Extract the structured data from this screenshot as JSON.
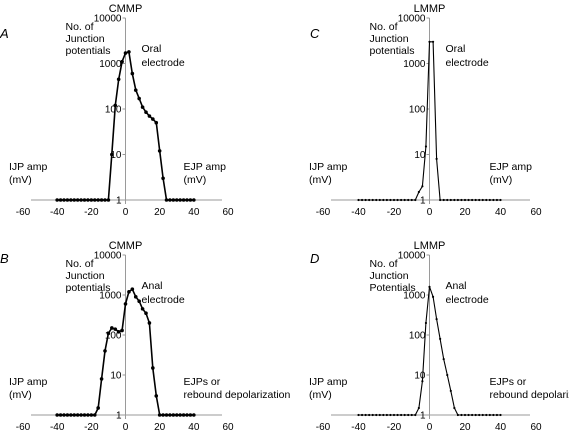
{
  "chart_data": [
    {
      "type": "line",
      "panel_label": "A",
      "title": "CMMP",
      "ylabel": "No. of Junction potentials",
      "ylabel_lines": [
        "No. of",
        "Junction",
        "potentials"
      ],
      "electrode_lines": [
        "Oral",
        "electrode"
      ],
      "left_note_lines": [
        "IJP amp",
        "(mV)"
      ],
      "right_note_lines": [
        "EJP amp",
        "(mV)"
      ],
      "y_scale": "log",
      "ylim": [
        1,
        10000
      ],
      "xlim": [
        -60,
        60
      ],
      "yticks": [
        "1",
        "10",
        "100",
        "1000",
        "10000"
      ],
      "xticks": [
        "-60",
        "-40",
        "-20",
        "0",
        "20",
        "40",
        "60"
      ],
      "series": [
        {
          "x": [
            -40,
            -38,
            -36,
            -34,
            -32,
            -30,
            -28,
            -26,
            -24,
            -22,
            -20,
            -18,
            -16,
            -14,
            -12,
            -10,
            -8,
            -6,
            -4,
            -2,
            0,
            2,
            4,
            6,
            8,
            10,
            12,
            14,
            16,
            18,
            20,
            22,
            24,
            26,
            28,
            30,
            32,
            34,
            36,
            38,
            40
          ],
          "y": [
            1,
            1,
            1,
            1,
            1,
            1,
            1,
            1,
            1,
            1,
            1,
            1,
            1,
            1,
            1,
            1,
            10,
            120,
            450,
            1100,
            1700,
            1800,
            600,
            260,
            170,
            110,
            85,
            70,
            60,
            50,
            12,
            3,
            1,
            1,
            1,
            1,
            1,
            1,
            1,
            1,
            1
          ]
        }
      ]
    },
    {
      "type": "line",
      "panel_label": "C",
      "title": "LMMP",
      "ylabel": "No. of Junction potentials",
      "ylabel_lines": [
        "No. of",
        "Junction",
        "potentials"
      ],
      "electrode_lines": [
        "Oral",
        "electrode"
      ],
      "left_note_lines": [
        "IJP amp",
        "(mV)"
      ],
      "right_note_lines": [
        "EJP amp",
        "(mV)"
      ],
      "y_scale": "log",
      "ylim": [
        1,
        10000
      ],
      "xlim": [
        -60,
        60
      ],
      "yticks": [
        "1",
        "10",
        "100",
        "1000",
        "10000"
      ],
      "xticks": [
        "-60",
        "-40",
        "-20",
        "0",
        "20",
        "40",
        "60"
      ],
      "series": [
        {
          "x": [
            -40,
            -38,
            -36,
            -34,
            -32,
            -30,
            -28,
            -26,
            -24,
            -22,
            -20,
            -18,
            -16,
            -14,
            -12,
            -10,
            -8,
            -6,
            -4,
            -2,
            0,
            2,
            4,
            6,
            8,
            10,
            12,
            14,
            16,
            18,
            20,
            22,
            24,
            26,
            28,
            30,
            32,
            34,
            36,
            38,
            40
          ],
          "y": [
            1,
            1,
            1,
            1,
            1,
            1,
            1,
            1,
            1,
            1,
            1,
            1,
            1,
            1,
            1,
            1,
            1,
            1.5,
            2,
            15,
            3000,
            3000,
            8,
            1,
            1,
            1,
            1,
            1,
            1,
            1,
            1,
            1,
            1,
            1,
            1,
            1,
            1,
            1,
            1,
            1,
            1
          ]
        }
      ]
    },
    {
      "type": "line",
      "panel_label": "B",
      "title": "CMMP",
      "ylabel": "No. of Junction potentials",
      "ylabel_lines": [
        "No. of",
        "Junction",
        "potentials"
      ],
      "electrode_lines": [
        "Anal",
        "electrode"
      ],
      "left_note_lines": [
        "IJP amp",
        "(mV)"
      ],
      "right_note_lines": [
        "EJPs or",
        "rebound depolarization"
      ],
      "y_scale": "log",
      "ylim": [
        1,
        10000
      ],
      "xlim": [
        -60,
        60
      ],
      "yticks": [
        "1",
        "10",
        "100",
        "1000",
        "10000"
      ],
      "xticks": [
        "-60",
        "-40",
        "-20",
        "0",
        "20",
        "40",
        "60"
      ],
      "series": [
        {
          "x": [
            -40,
            -38,
            -36,
            -34,
            -32,
            -30,
            -28,
            -26,
            -24,
            -22,
            -20,
            -18,
            -16,
            -14,
            -12,
            -10,
            -8,
            -6,
            -4,
            -2,
            0,
            2,
            4,
            6,
            8,
            10,
            12,
            14,
            16,
            18,
            20,
            22,
            24,
            26,
            28,
            30,
            32,
            34,
            36,
            38,
            40
          ],
          "y": [
            1,
            1,
            1,
            1,
            1,
            1,
            1,
            1,
            1,
            1,
            1,
            1,
            1.5,
            8,
            40,
            110,
            150,
            140,
            120,
            130,
            600,
            1200,
            1400,
            900,
            700,
            450,
            350,
            200,
            15,
            3,
            1,
            1,
            1,
            1,
            1,
            1,
            1,
            1,
            1,
            1,
            1
          ]
        }
      ]
    },
    {
      "type": "line",
      "panel_label": "D",
      "title": "LMMP",
      "ylabel": "No. of Junction Potentials",
      "ylabel_lines": [
        "No. of",
        "Junction",
        "Potentials"
      ],
      "electrode_lines": [
        "Anal",
        "electrode"
      ],
      "left_note_lines": [
        "IJP amp",
        "(mV)"
      ],
      "right_note_lines": [
        "EJPs or",
        "rebound depolarization"
      ],
      "y_scale": "log",
      "ylim": [
        1,
        10000
      ],
      "xlim": [
        -60,
        60
      ],
      "yticks": [
        "1",
        "10",
        "100",
        "1000",
        "10000"
      ],
      "xticks": [
        "-60",
        "-40",
        "-20",
        "0",
        "20",
        "40",
        "60"
      ],
      "series": [
        {
          "x": [
            -40,
            -38,
            -36,
            -34,
            -32,
            -30,
            -28,
            -26,
            -24,
            -22,
            -20,
            -18,
            -16,
            -14,
            -12,
            -10,
            -8,
            -6,
            -4,
            -2,
            0,
            2,
            4,
            6,
            8,
            10,
            12,
            14,
            16,
            18,
            20,
            22,
            24,
            26,
            28,
            30,
            32,
            34,
            36,
            38,
            40
          ],
          "y": [
            1,
            1,
            1,
            1,
            1,
            1,
            1,
            1,
            1,
            1,
            1,
            1,
            1,
            1,
            1,
            1,
            1,
            1.5,
            7,
            200,
            1600,
            900,
            250,
            80,
            25,
            10,
            4,
            1.5,
            1,
            1,
            1,
            1,
            1,
            1,
            1,
            1,
            1,
            1,
            1,
            1,
            1
          ]
        }
      ]
    }
  ]
}
